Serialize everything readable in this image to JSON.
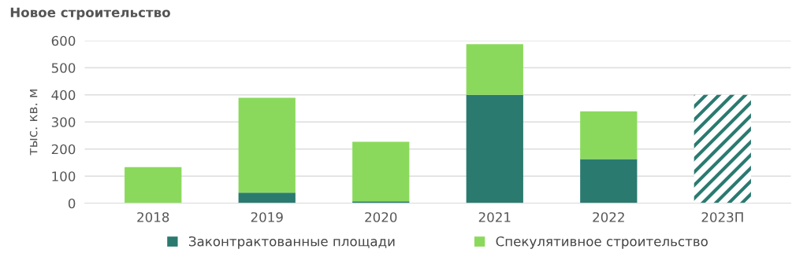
{
  "chart_data": {
    "type": "bar",
    "title": "Новое строительство",
    "ylabel": "тыс. кв. м",
    "categories": [
      "2018",
      "2019",
      "2020",
      "2021",
      "2022",
      "2023П"
    ],
    "stacked": true,
    "series": [
      {
        "name": "Законтрактованные площади",
        "color": "#2a7a70",
        "values": [
          0,
          39,
          7,
          400,
          163,
          null
        ]
      },
      {
        "name": "Спекулятивное строительство",
        "color": "#8bd95c",
        "values": [
          133,
          350,
          220,
          187,
          176,
          null
        ]
      },
      {
        "color": "#2a7a70",
        "values": [
          null,
          null,
          null,
          null,
          null,
          400
        ]
      }
    ],
    "ylim": [
      0,
      600
    ],
    "yticks": [
      0,
      100,
      200,
      300,
      400,
      500,
      600
    ],
    "grid": "y",
    "legend": "bottom"
  }
}
